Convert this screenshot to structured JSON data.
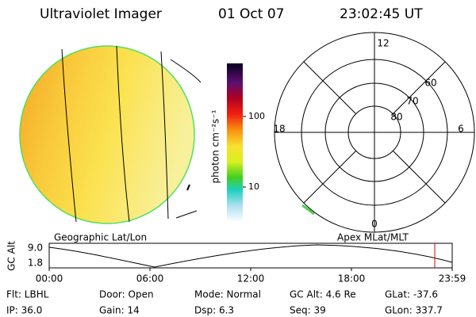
{
  "header": {
    "title": "Ultraviolet Imager",
    "date": "01 Oct 07",
    "time": "23:02:45 UT"
  },
  "colorbar": {
    "label": "photon cm⁻²s⁻¹",
    "ticks": [
      "100",
      "10"
    ]
  },
  "polar": {
    "mlt_labels": [
      "12",
      "18",
      "6",
      "0"
    ],
    "lat_labels": [
      "60",
      "70",
      "80"
    ]
  },
  "captions": {
    "left": "Geographic Lat/Lon",
    "right": "Apex MLat/MLT"
  },
  "altitude": {
    "ylabel": "GC Alt",
    "yticks": [
      "9.0",
      "1.8"
    ],
    "xticks": [
      "00:00",
      "06:00",
      "12:00",
      "18:00",
      "23:59"
    ]
  },
  "info": [
    [
      "Flt: LBHL",
      "Door: Open",
      "Mode: Normal",
      "GC Alt: 4.6 Re",
      "GLat: -37.6"
    ],
    [
      "IP: 36.0",
      "Gain: 14",
      "Dsp: 6.3",
      "Seq: 39",
      "GLon: 337.7"
    ]
  ]
}
